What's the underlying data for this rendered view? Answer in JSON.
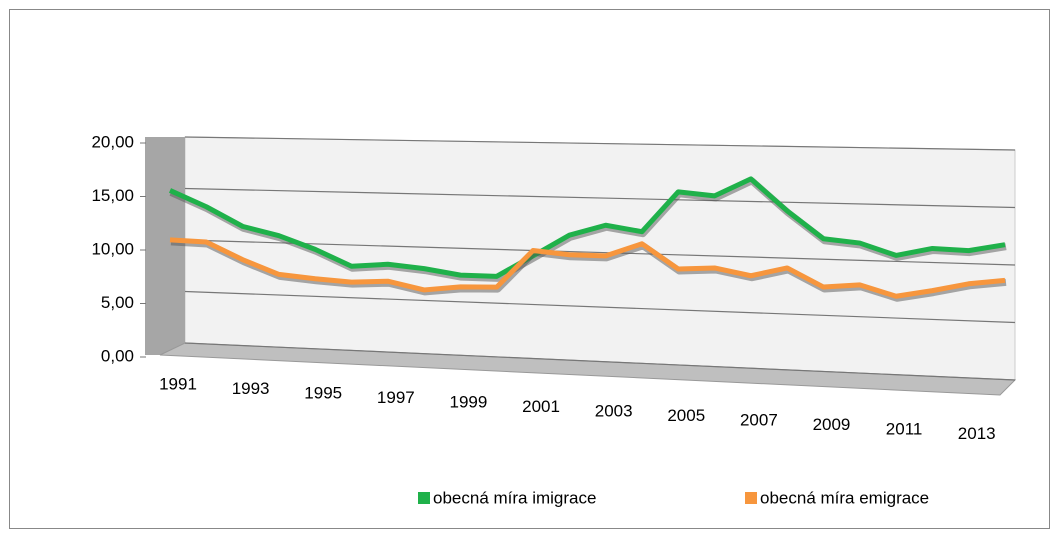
{
  "chart_data": {
    "type": "line",
    "categories": [
      "1991",
      null,
      "1993",
      null,
      "1995",
      null,
      "1997",
      null,
      "1999",
      null,
      "2001",
      null,
      "2003",
      null,
      "2005",
      null,
      "2007",
      null,
      "2009",
      null,
      "2011",
      null,
      "2013",
      null
    ],
    "series": [
      {
        "name": "obecná míra imigrace",
        "color": "#1fb14a",
        "values": [
          15.3,
          13.8,
          12.0,
          11.2,
          10.0,
          8.5,
          8.8,
          8.5,
          8.0,
          8.0,
          10.0,
          12.0,
          13.0,
          12.5,
          16.2,
          15.9,
          17.5,
          14.7,
          12.3,
          12.0,
          11.0,
          11.7,
          11.6,
          12.2
        ]
      },
      {
        "name": "obecná míra emigrace",
        "color": "#f7963d",
        "values": [
          10.5,
          10.4,
          8.8,
          7.5,
          7.2,
          7.0,
          7.2,
          6.5,
          6.9,
          7.0,
          10.5,
          10.2,
          10.2,
          11.4,
          9.2,
          9.4,
          8.8,
          9.6,
          8.0,
          8.3,
          7.4,
          8.0,
          8.7,
          9.1
        ]
      }
    ],
    "ylim": [
      0,
      20
    ],
    "yticks": [
      {
        "value": 0,
        "label": "0,00"
      },
      {
        "value": 5,
        "label": "5,00"
      },
      {
        "value": 10,
        "label": "10,00"
      },
      {
        "value": 15,
        "label": "15,00"
      },
      {
        "value": 20,
        "label": "20,00"
      }
    ],
    "grid": true,
    "legend": "bottom"
  }
}
